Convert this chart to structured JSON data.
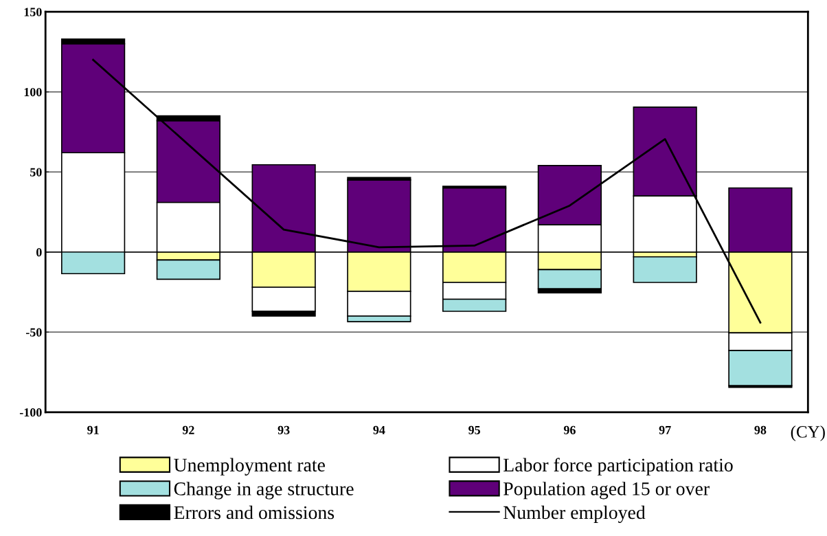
{
  "chart_data": {
    "type": "bar",
    "stacked": true,
    "categories": [
      "91",
      "92",
      "93",
      "94",
      "95",
      "96",
      "97",
      "98"
    ],
    "series": [
      {
        "name": "Unemployment rate",
        "color": "#ffff99",
        "values": [
          null,
          -5,
          -22,
          -24.5,
          -19,
          -11,
          -3,
          -50.5
        ]
      },
      {
        "name": "Labor force participation ratio",
        "color": "#ffffff",
        "values": [
          62,
          31,
          -15,
          -15.5,
          -10.5,
          17,
          35,
          -11
        ]
      },
      {
        "name": "Change in age structure",
        "color": "#a3e0e0",
        "values": [
          -13.5,
          -12,
          null,
          -3.5,
          -7.5,
          -12,
          -16,
          -22
        ]
      },
      {
        "name": "Population aged 15 or over",
        "color": "#5f0079",
        "values": [
          68,
          51,
          54.5,
          45,
          40,
          37,
          55.5,
          40
        ]
      },
      {
        "name": "Errors and omissions",
        "color": "#000000",
        "values": [
          3,
          3,
          -3,
          1.5,
          1,
          -2.5,
          null,
          -1
        ]
      },
      {
        "name": "Number employed",
        "type": "line",
        "color": "#000000",
        "values": [
          120,
          67,
          14,
          3,
          4,
          29,
          70.5,
          -44
        ]
      }
    ],
    "ylim": [
      -100,
      150
    ],
    "yticks": [
      -100,
      -50,
      0,
      50,
      100,
      150
    ],
    "grid": "y",
    "legend": "bottom",
    "marker": "none",
    "line_style": "solid",
    "annotations": [
      "(CY)"
    ]
  }
}
